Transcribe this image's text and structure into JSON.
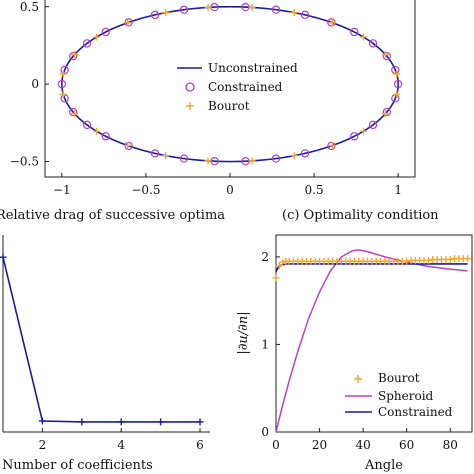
{
  "captions": {
    "left": "Relative drag of successive optima",
    "right": "(c) Optimality condition"
  },
  "colors": {
    "unconstrained": "#1a1aa6",
    "constrained": "#b040c0",
    "bourot": "#f5a623",
    "spheroid": "#c040c0",
    "constrained_line": "#1a1aa6"
  },
  "chart_data": [
    {
      "type": "line",
      "xlim": [
        -1.1,
        1.1
      ],
      "ylim": [
        -0.6,
        0.55
      ],
      "xticks": [
        "−1",
        "−0.5",
        "0",
        "0.5",
        "1"
      ],
      "xtick_values": [
        -1,
        -0.5,
        0,
        0.5,
        1
      ],
      "yticks": [
        "0.5",
        "0",
        "−0.5"
      ],
      "ytick_values": [
        0.5,
        0,
        -0.5
      ],
      "curve": {
        "shape": "ellipse",
        "a": 1.0,
        "b": 0.5
      },
      "series": [
        {
          "name": "Unconstrained",
          "style": "line"
        },
        {
          "name": "Constrained",
          "style": "circle",
          "count": 34
        },
        {
          "name": "Bourot",
          "style": "plus",
          "count": 24
        }
      ],
      "legend": "center"
    },
    {
      "type": "line",
      "xlabel": "Number of coefficients",
      "xlim": [
        1,
        6
      ],
      "ylim": [
        0,
        1.0
      ],
      "xticks": [
        "2",
        "4",
        "6"
      ],
      "xtick_values": [
        2,
        4,
        6
      ],
      "x": [
        1,
        2,
        3,
        4,
        5,
        6
      ],
      "values": [
        0.95,
        0.06,
        0.055,
        0.055,
        0.055,
        0.055
      ]
    },
    {
      "type": "line",
      "xlabel": "Angle",
      "ylabel": "|∂u/∂n|",
      "xlim": [
        0,
        90
      ],
      "ylim": [
        0,
        2.25
      ],
      "xticks": [
        "0",
        "20",
        "40",
        "60",
        "80"
      ],
      "xtick_values": [
        0,
        20,
        40,
        60,
        80
      ],
      "yticks": [
        "0",
        "1",
        "2"
      ],
      "ytick_values": [
        0,
        1,
        2
      ],
      "series": [
        {
          "name": "Bourot",
          "style": "plus",
          "x": [
            0,
            1.5,
            3,
            4.5,
            6,
            8,
            10,
            12,
            14,
            16,
            18,
            20,
            22,
            24,
            26,
            28,
            30,
            32,
            34,
            36,
            38,
            40,
            42,
            44,
            46,
            48,
            50,
            52,
            54,
            56,
            58,
            60,
            62,
            64,
            66,
            68,
            70,
            72,
            74,
            76,
            78,
            80,
            82,
            84,
            86,
            88
          ],
          "y": [
            1.76,
            1.9,
            1.94,
            1.95,
            1.95,
            1.95,
            1.95,
            1.95,
            1.95,
            1.95,
            1.95,
            1.95,
            1.95,
            1.95,
            1.95,
            1.95,
            1.95,
            1.95,
            1.95,
            1.95,
            1.95,
            1.95,
            1.95,
            1.95,
            1.95,
            1.95,
            1.95,
            1.95,
            1.95,
            1.95,
            1.95,
            1.95,
            1.96,
            1.96,
            1.96,
            1.96,
            1.96,
            1.97,
            1.97,
            1.97,
            1.97,
            1.97,
            1.98,
            1.98,
            1.98,
            1.98
          ]
        },
        {
          "name": "Spheroid",
          "style": "line",
          "x": [
            0,
            3,
            6,
            10,
            15,
            20,
            25,
            30,
            35,
            38,
            42,
            50,
            60,
            70,
            80,
            88
          ],
          "y": [
            0,
            0.3,
            0.58,
            0.92,
            1.3,
            1.6,
            1.84,
            2.0,
            2.07,
            2.08,
            2.06,
            2.0,
            1.94,
            1.89,
            1.86,
            1.84
          ]
        },
        {
          "name": "Constrained",
          "style": "line",
          "x": [
            0,
            1,
            2,
            3,
            5,
            8,
            12,
            20,
            30,
            40,
            50,
            60,
            70,
            80,
            88
          ],
          "y": [
            1.83,
            1.88,
            1.9,
            1.91,
            1.92,
            1.92,
            1.92,
            1.92,
            1.92,
            1.92,
            1.92,
            1.92,
            1.92,
            1.92,
            1.92
          ]
        }
      ],
      "legend": "bottom-right"
    }
  ]
}
